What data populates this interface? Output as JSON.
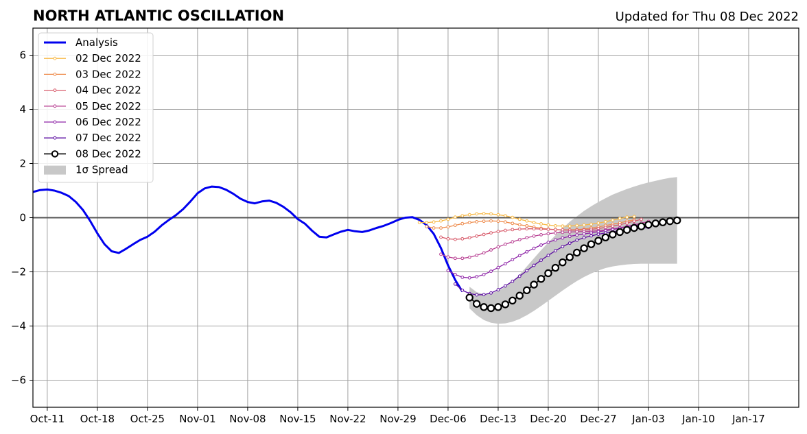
{
  "chart_data": {
    "type": "line",
    "title": "NORTH ATLANTIC OSCILLATION",
    "subtitle": "Updated for Thu 08 Dec 2022",
    "xlabel": "",
    "ylabel": "",
    "x_axis_type": "date",
    "xlim": [
      "2022-10-09",
      "2023-01-24"
    ],
    "ylim": [
      -7,
      7
    ],
    "xticks": [
      {
        "date": "2022-10-11",
        "label": "Oct-11"
      },
      {
        "date": "2022-10-18",
        "label": "Oct-18"
      },
      {
        "date": "2022-10-25",
        "label": "Oct-25"
      },
      {
        "date": "2022-11-01",
        "label": "Nov-01"
      },
      {
        "date": "2022-11-08",
        "label": "Nov-08"
      },
      {
        "date": "2022-11-15",
        "label": "Nov-15"
      },
      {
        "date": "2022-11-22",
        "label": "Nov-22"
      },
      {
        "date": "2022-11-29",
        "label": "Nov-29"
      },
      {
        "date": "2022-12-06",
        "label": "Dec-06"
      },
      {
        "date": "2022-12-13",
        "label": "Dec-13"
      },
      {
        "date": "2022-12-20",
        "label": "Dec-20"
      },
      {
        "date": "2022-12-27",
        "label": "Dec-27"
      },
      {
        "date": "2023-01-03",
        "label": "Jan-03"
      },
      {
        "date": "2023-01-10",
        "label": "Jan-10"
      },
      {
        "date": "2023-01-17",
        "label": "Jan-17"
      }
    ],
    "yticks": [
      {
        "value": 6,
        "label": "6"
      },
      {
        "value": 4,
        "label": "4"
      },
      {
        "value": 2,
        "label": "2"
      },
      {
        "value": 0,
        "label": "0"
      },
      {
        "value": -2,
        "label": "−2"
      },
      {
        "value": -4,
        "label": "−4"
      },
      {
        "value": -6,
        "label": "−6"
      }
    ],
    "grid": true,
    "legend_position": "top-left",
    "series": [
      {
        "name": "Analysis",
        "color": "#0000ee",
        "style": "line",
        "start": "2022-10-09",
        "values": [
          0.95,
          1.02,
          1.04,
          1.0,
          0.92,
          0.8,
          0.58,
          0.28,
          -0.12,
          -0.58,
          -0.98,
          -1.24,
          -1.3,
          -1.15,
          -0.98,
          -0.82,
          -0.7,
          -0.52,
          -0.28,
          -0.08,
          0.1,
          0.32,
          0.6,
          0.9,
          1.08,
          1.15,
          1.13,
          1.03,
          0.88,
          0.7,
          0.58,
          0.53,
          0.6,
          0.63,
          0.55,
          0.4,
          0.2,
          -0.05,
          -0.22,
          -0.48,
          -0.7,
          -0.73,
          -0.62,
          -0.52,
          -0.45,
          -0.5,
          -0.53,
          -0.47,
          -0.38,
          -0.3,
          -0.2,
          -0.08,
          0.0,
          0.02,
          -0.08,
          -0.27,
          -0.6,
          -1.12,
          -1.76,
          -2.3,
          -2.73
        ]
      },
      {
        "name": "02 Dec 2022",
        "color": "#f7b844",
        "style": "small-marker",
        "start": "2022-12-02",
        "values": [
          -0.18,
          -0.18,
          -0.16,
          -0.12,
          -0.06,
          0.02,
          0.07,
          0.11,
          0.14,
          0.15,
          0.14,
          0.11,
          0.07,
          0.01,
          -0.06,
          -0.12,
          -0.18,
          -0.23,
          -0.27,
          -0.3,
          -0.31,
          -0.31,
          -0.29,
          -0.27,
          -0.24,
          -0.2,
          -0.15,
          -0.09,
          -0.03,
          0.02,
          0.04
        ]
      },
      {
        "name": "03 Dec 2022",
        "color": "#ee8a4a",
        "style": "small-marker",
        "start": "2022-12-03",
        "values": [
          -0.33,
          -0.38,
          -0.38,
          -0.34,
          -0.28,
          -0.22,
          -0.18,
          -0.15,
          -0.13,
          -0.12,
          -0.13,
          -0.16,
          -0.21,
          -0.26,
          -0.3,
          -0.35,
          -0.39,
          -0.42,
          -0.44,
          -0.45,
          -0.45,
          -0.44,
          -0.42,
          -0.38,
          -0.34,
          -0.29,
          -0.24,
          -0.19,
          -0.13,
          -0.08
        ]
      },
      {
        "name": "04 Dec 2022",
        "color": "#d85a6a",
        "style": "small-marker",
        "start": "2022-12-05",
        "values": [
          -0.72,
          -0.78,
          -0.8,
          -0.78,
          -0.74,
          -0.68,
          -0.62,
          -0.56,
          -0.51,
          -0.47,
          -0.44,
          -0.42,
          -0.41,
          -0.41,
          -0.42,
          -0.43,
          -0.44,
          -0.45,
          -0.46,
          -0.46,
          -0.45,
          -0.43,
          -0.4,
          -0.36,
          -0.31,
          -0.26,
          -0.2,
          -0.13,
          -0.06
        ]
      },
      {
        "name": "05 Dec 2022",
        "color": "#b83f92",
        "style": "small-marker",
        "start": "2022-12-05",
        "values": [
          -1.35,
          -1.45,
          -1.5,
          -1.5,
          -1.46,
          -1.39,
          -1.3,
          -1.19,
          -1.08,
          -0.98,
          -0.89,
          -0.81,
          -0.74,
          -0.68,
          -0.63,
          -0.59,
          -0.56,
          -0.54,
          -0.53,
          -0.52,
          -0.51,
          -0.5,
          -0.48,
          -0.45,
          -0.41,
          -0.37,
          -0.32,
          -0.26,
          -0.2,
          -0.14
        ]
      },
      {
        "name": "06 Dec 2022",
        "color": "#8e25a8",
        "style": "small-marker",
        "start": "2022-12-06",
        "values": [
          -1.95,
          -2.1,
          -2.2,
          -2.22,
          -2.18,
          -2.1,
          -1.98,
          -1.84,
          -1.7,
          -1.55,
          -1.4,
          -1.26,
          -1.13,
          -1.01,
          -0.91,
          -0.82,
          -0.75,
          -0.69,
          -0.64,
          -0.6,
          -0.56,
          -0.52,
          -0.48,
          -0.44,
          -0.39,
          -0.34,
          -0.29,
          -0.24
        ]
      },
      {
        "name": "07 Dec 2022",
        "color": "#5a0aa0",
        "style": "small-marker",
        "start": "2022-12-07",
        "values": [
          -2.45,
          -2.68,
          -2.8,
          -2.85,
          -2.84,
          -2.78,
          -2.66,
          -2.52,
          -2.35,
          -2.16,
          -1.96,
          -1.76,
          -1.57,
          -1.39,
          -1.22,
          -1.07,
          -0.94,
          -0.83,
          -0.74,
          -0.67,
          -0.61,
          -0.56,
          -0.52,
          -0.48,
          -0.45,
          -0.42,
          -0.39,
          -0.36
        ]
      },
      {
        "name": "08 Dec 2022",
        "color": "#000000",
        "style": "big-marker",
        "start": "2022-12-09",
        "values": [
          -2.95,
          -3.18,
          -3.3,
          -3.34,
          -3.3,
          -3.2,
          -3.06,
          -2.88,
          -2.68,
          -2.47,
          -2.26,
          -2.05,
          -1.85,
          -1.65,
          -1.46,
          -1.29,
          -1.13,
          -0.98,
          -0.85,
          -0.73,
          -0.62,
          -0.53,
          -0.45,
          -0.38,
          -0.32,
          -0.26,
          -0.21,
          -0.17,
          -0.13,
          -0.1
        ]
      }
    ],
    "spread": {
      "name": "1σ Spread",
      "color": "#c8c8c8",
      "start": "2022-12-09",
      "upper": [
        -2.55,
        -2.75,
        -2.82,
        -2.8,
        -2.7,
        -2.55,
        -2.35,
        -2.1,
        -1.8,
        -1.5,
        -1.2,
        -0.92,
        -0.65,
        -0.4,
        -0.15,
        0.05,
        0.25,
        0.42,
        0.58,
        0.72,
        0.85,
        0.96,
        1.06,
        1.15,
        1.23,
        1.3,
        1.36,
        1.42,
        1.47,
        1.5
      ],
      "lower": [
        -3.35,
        -3.6,
        -3.78,
        -3.88,
        -3.92,
        -3.9,
        -3.84,
        -3.74,
        -3.6,
        -3.44,
        -3.26,
        -3.07,
        -2.88,
        -2.69,
        -2.51,
        -2.34,
        -2.19,
        -2.06,
        -1.95,
        -1.86,
        -1.8,
        -1.76,
        -1.73,
        -1.71,
        -1.7,
        -1.7,
        -1.7,
        -1.7,
        -1.7,
        -1.7
      ]
    }
  }
}
